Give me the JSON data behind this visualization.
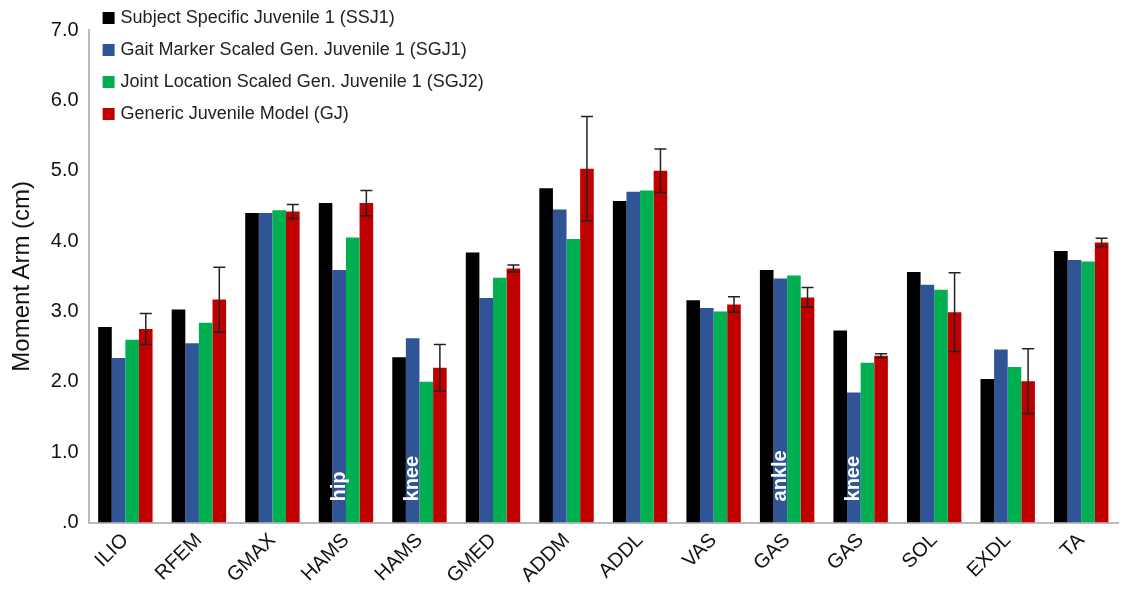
{
  "chart_data": {
    "type": "bar",
    "ylabel": "Moment Arm (cm)",
    "categories": [
      "ILIO",
      "RFEM",
      "GMAX",
      "HAMS",
      "HAMS",
      "GMED",
      "ADDM",
      "ADDL",
      "VAS",
      "GAS",
      "GAS",
      "SOL",
      "EXDL",
      "TA"
    ],
    "series": [
      {
        "name": "Subject Specific Juvenile 1 (SSJ1)",
        "color": "#000000",
        "values": [
          2.78,
          3.03,
          4.4,
          4.54,
          2.35,
          3.84,
          4.75,
          4.57,
          3.16,
          3.59,
          2.73,
          3.56,
          2.04,
          3.86
        ]
      },
      {
        "name": "Gait Marker Scaled Gen. Juvenile 1 (SGJ1)",
        "color": "#2f5597",
        "values": [
          2.34,
          2.55,
          4.4,
          3.59,
          2.62,
          3.19,
          4.45,
          4.7,
          3.05,
          3.47,
          1.85,
          3.38,
          2.46,
          3.73
        ]
      },
      {
        "name": "Joint Location Scaled Gen. Juvenile 1 (SGJ2)",
        "color": "#00b050",
        "values": [
          2.6,
          2.84,
          4.44,
          4.05,
          2.0,
          3.48,
          4.03,
          4.72,
          3.0,
          3.51,
          2.27,
          3.31,
          2.21,
          3.71
        ]
      },
      {
        "name": "Generic Juvenile Model (GJ)",
        "color": "#c00000",
        "values": [
          2.75,
          3.17,
          4.42,
          4.54,
          2.2,
          3.61,
          5.03,
          5.0,
          3.1,
          3.2,
          2.37,
          2.99,
          2.01,
          3.98
        ],
        "errors": [
          0.22,
          0.46,
          0.1,
          0.18,
          0.33,
          0.05,
          0.74,
          0.31,
          0.11,
          0.14,
          0.03,
          0.56,
          0.46,
          0.06
        ]
      }
    ],
    "ylim": [
      0,
      7
    ],
    "yticks": [
      {
        "value": 0,
        "label": ".0"
      },
      {
        "value": 1,
        "label": "1.0"
      },
      {
        "value": 2,
        "label": "2.0"
      },
      {
        "value": 3,
        "label": "3.0"
      },
      {
        "value": 4,
        "label": "4.0"
      },
      {
        "value": 5,
        "label": "5.0"
      },
      {
        "value": 6,
        "label": "6.0"
      },
      {
        "value": 7,
        "label": "7.0"
      }
    ],
    "annotations": [
      {
        "text": "hip",
        "x": "HAMS",
        "y": 0.3
      },
      {
        "text": "knee",
        "x": "HAMS",
        "y": 0.3
      },
      {
        "text": "ankle",
        "x": "GAS",
        "y": 0.3
      },
      {
        "text": "knee",
        "x": "GAS",
        "y": 0.3
      }
    ],
    "legend": "top left",
    "grid": false
  }
}
